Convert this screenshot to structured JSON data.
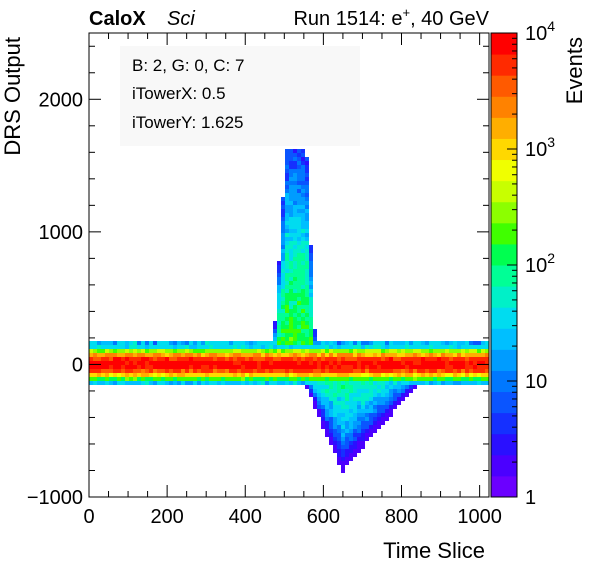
{
  "header": {
    "brand": "CaloX",
    "tag": "Sci",
    "run_label": "Run 1514: e",
    "run_sup": "+",
    "run_energy": ", 40 GeV"
  },
  "infobox": {
    "line1": "B: 2, G: 0, C: 7",
    "line2": "iTowerX: 0.5",
    "line3": "iTowerY: 1.625"
  },
  "colorbar": {
    "title": "Events",
    "scale": "log",
    "range": [
      1,
      10000
    ],
    "labels": [
      {
        "value": 10000,
        "base": "10",
        "exp": "4"
      },
      {
        "value": 1000,
        "base": "10",
        "exp": "3"
      },
      {
        "value": 100,
        "base": "10",
        "exp": "2"
      },
      {
        "value": 10,
        "base": "10",
        "exp": ""
      },
      {
        "value": 1,
        "base": "1",
        "exp": ""
      }
    ],
    "palette": [
      "#6b00ff",
      "#4b00ff",
      "#2a10ff",
      "#1530ff",
      "#0a55ff",
      "#0078ff",
      "#009cff",
      "#00bfff",
      "#00dcf0",
      "#00f0c8",
      "#00ff96",
      "#00ff50",
      "#40ff00",
      "#8cff00",
      "#c8ff00",
      "#f0ff00",
      "#ffd800",
      "#ffae00",
      "#ff8200",
      "#ff5a00",
      "#ff2a00",
      "#ff0000"
    ]
  },
  "chart_data": {
    "type": "heatmap",
    "xlabel": "Time Slice",
    "ylabel": "DRS Output",
    "xlim": [
      0,
      1024
    ],
    "ylim": [
      -1000,
      2500
    ],
    "x_ticks": [
      0,
      200,
      400,
      600,
      800,
      1000
    ],
    "y_ticks": [
      -1000,
      0,
      1000,
      2000
    ],
    "z_label": "Events",
    "z_scale": "log",
    "z_range": [
      1,
      10000
    ],
    "features": [
      {
        "name": "baseline band",
        "x_range": [
          0,
          1024
        ],
        "y_range": [
          -150,
          180
        ],
        "max_events": 10000
      },
      {
        "name": "positive pulse",
        "x_range": [
          470,
          580
        ],
        "y_peak": 1600,
        "peak_x": 530
      },
      {
        "name": "negative undershoot",
        "x_range": [
          540,
          900
        ],
        "y_min": -780,
        "min_x": 650
      }
    ]
  }
}
